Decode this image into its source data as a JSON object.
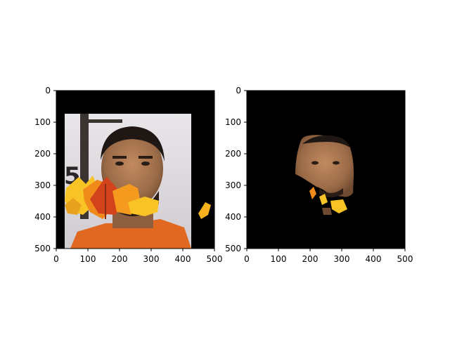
{
  "chart_data": [
    {
      "type": "image",
      "title": "",
      "xlabel": "",
      "ylabel": "",
      "xlim": [
        0,
        500
      ],
      "ylim": [
        500,
        0
      ],
      "xticks": [
        0,
        100,
        200,
        300,
        400,
        500
      ],
      "yticks": [
        0,
        100,
        200,
        300,
        400,
        500
      ],
      "xtick_labels": [
        "0",
        "100",
        "200",
        "300",
        "400",
        "500"
      ],
      "ytick_labels": [
        "0",
        "100",
        "200",
        "300",
        "400",
        "500"
      ],
      "image": "photo of a man's face composited over a black background with a cluster of orange and yellow autumn leaves covering the lower face and a small leaf at the right edge"
    },
    {
      "type": "image",
      "title": "",
      "xlabel": "",
      "ylabel": "",
      "xlim": [
        0,
        500
      ],
      "ylim": [
        500,
        0
      ],
      "xticks": [
        0,
        100,
        200,
        300,
        400,
        500
      ],
      "yticks": [
        0,
        100,
        200,
        300,
        400,
        500
      ],
      "xtick_labels": [
        "0",
        "100",
        "200",
        "300",
        "400",
        "500"
      ],
      "ytick_labels": [
        "0",
        "100",
        "200",
        "300",
        "400",
        "500"
      ],
      "image": "face region segmented on black background with small orange leaf fragments near the chin"
    }
  ],
  "colors": {
    "background": "#ffffff",
    "axes_bg": "#000000",
    "tick": "#000000",
    "leaf_orange": "#f08a1a",
    "leaf_yellow": "#f7c325",
    "leaf_red": "#d2431c",
    "skin": "#a8754f",
    "shirt": "#e06820"
  }
}
